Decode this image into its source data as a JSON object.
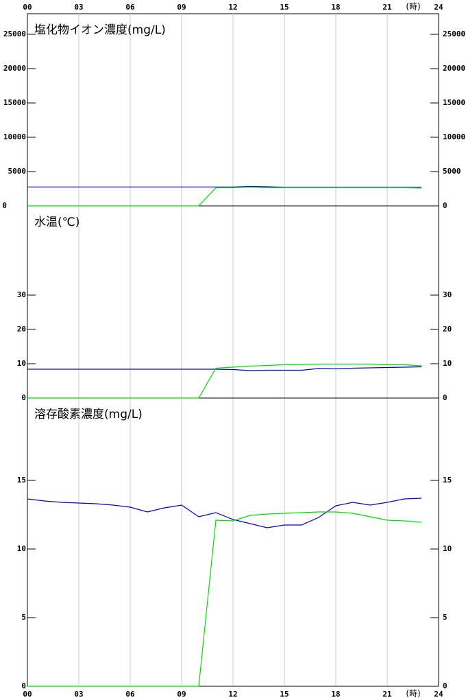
{
  "chart_data": [
    {
      "type": "line",
      "title": "塩化物イオン濃度(mg/L)",
      "xlabel": "(時)",
      "x": [
        0,
        1,
        2,
        3,
        4,
        5,
        6,
        7,
        8,
        9,
        10,
        11,
        12,
        13,
        14,
        15,
        16,
        17,
        18,
        19,
        20,
        21,
        22,
        23
      ],
      "xlim": [
        0,
        24
      ],
      "xticks": [
        {
          "value": 0,
          "label": "00"
        },
        {
          "value": 3,
          "label": "03"
        },
        {
          "value": 6,
          "label": "06"
        },
        {
          "value": 9,
          "label": "09"
        },
        12,
        15,
        18,
        21,
        24
      ],
      "ylim": [
        0,
        28000
      ],
      "yticks": [
        0,
        5000,
        10000,
        15000,
        20000,
        25000
      ],
      "series": [
        {
          "color": "#0000cc",
          "values": [
            2750,
            2750,
            2750,
            2750,
            2750,
            2750,
            2750,
            2750,
            2750,
            2750,
            2750,
            2750,
            2750,
            2850,
            2800,
            2700,
            2700,
            2700,
            2700,
            2700,
            2700,
            2700,
            2700,
            2700
          ]
        },
        {
          "color": "#00dd00",
          "values": [
            0,
            0,
            0,
            0,
            0,
            0,
            0,
            0,
            0,
            0,
            0,
            2650,
            2650,
            2750,
            2650,
            2650,
            2650,
            2650,
            2650,
            2650,
            2650,
            2650,
            2650,
            2600
          ]
        }
      ]
    },
    {
      "type": "line",
      "title": "水温(℃)",
      "x": [
        0,
        1,
        2,
        3,
        4,
        5,
        6,
        7,
        8,
        9,
        10,
        11,
        12,
        13,
        14,
        15,
        16,
        17,
        18,
        19,
        20,
        21,
        22,
        23
      ],
      "xlim": [
        0,
        24
      ],
      "ylim": [
        0,
        56
      ],
      "yticks": [
        0,
        10,
        20,
        30
      ],
      "series": [
        {
          "color": "#0000cc",
          "values": [
            8.4,
            8.4,
            8.4,
            8.4,
            8.4,
            8.4,
            8.4,
            8.4,
            8.4,
            8.4,
            8.4,
            8.4,
            8.3,
            8.0,
            8.1,
            8.1,
            8.1,
            8.6,
            8.5,
            8.7,
            8.8,
            8.9,
            9.0,
            9.1
          ]
        },
        {
          "color": "#00dd00",
          "values": [
            0,
            0,
            0,
            0,
            0,
            0,
            0,
            0,
            0,
            0,
            0,
            8.7,
            9.0,
            9.3,
            9.5,
            9.7,
            9.8,
            9.9,
            9.9,
            9.9,
            9.9,
            9.7,
            9.7,
            9.4
          ]
        }
      ]
    },
    {
      "type": "line",
      "title": "溶存酸素濃度(mg/L)",
      "xlabel": "(時)",
      "x": [
        0,
        1,
        2,
        3,
        4,
        5,
        6,
        7,
        8,
        9,
        10,
        11,
        12,
        13,
        14,
        15,
        16,
        17,
        18,
        19,
        20,
        21,
        22,
        23
      ],
      "xlim": [
        0,
        24
      ],
      "xticks": [
        {
          "value": 0,
          "label": "00"
        },
        {
          "value": 3,
          "label": "03"
        },
        {
          "value": 6,
          "label": "06"
        },
        {
          "value": 9,
          "label": "09"
        },
        12,
        15,
        18,
        21,
        24
      ],
      "ylim": [
        0,
        21
      ],
      "yticks": [
        0,
        5,
        10,
        15
      ],
      "series": [
        {
          "color": "#0000cc",
          "values": [
            13.65,
            13.5,
            13.4,
            13.35,
            13.3,
            13.2,
            13.05,
            12.7,
            13.0,
            13.2,
            12.35,
            12.65,
            12.15,
            11.85,
            11.55,
            11.75,
            11.75,
            12.3,
            13.15,
            13.4,
            13.2,
            13.4,
            13.65,
            13.7
          ]
        },
        {
          "color": "#00dd00",
          "values": [
            0,
            0,
            0,
            0,
            0,
            0,
            0,
            0,
            0,
            0,
            0,
            12.1,
            12.05,
            12.45,
            12.55,
            12.6,
            12.65,
            12.7,
            12.7,
            12.6,
            12.35,
            12.1,
            12.05,
            11.95
          ]
        }
      ]
    }
  ]
}
